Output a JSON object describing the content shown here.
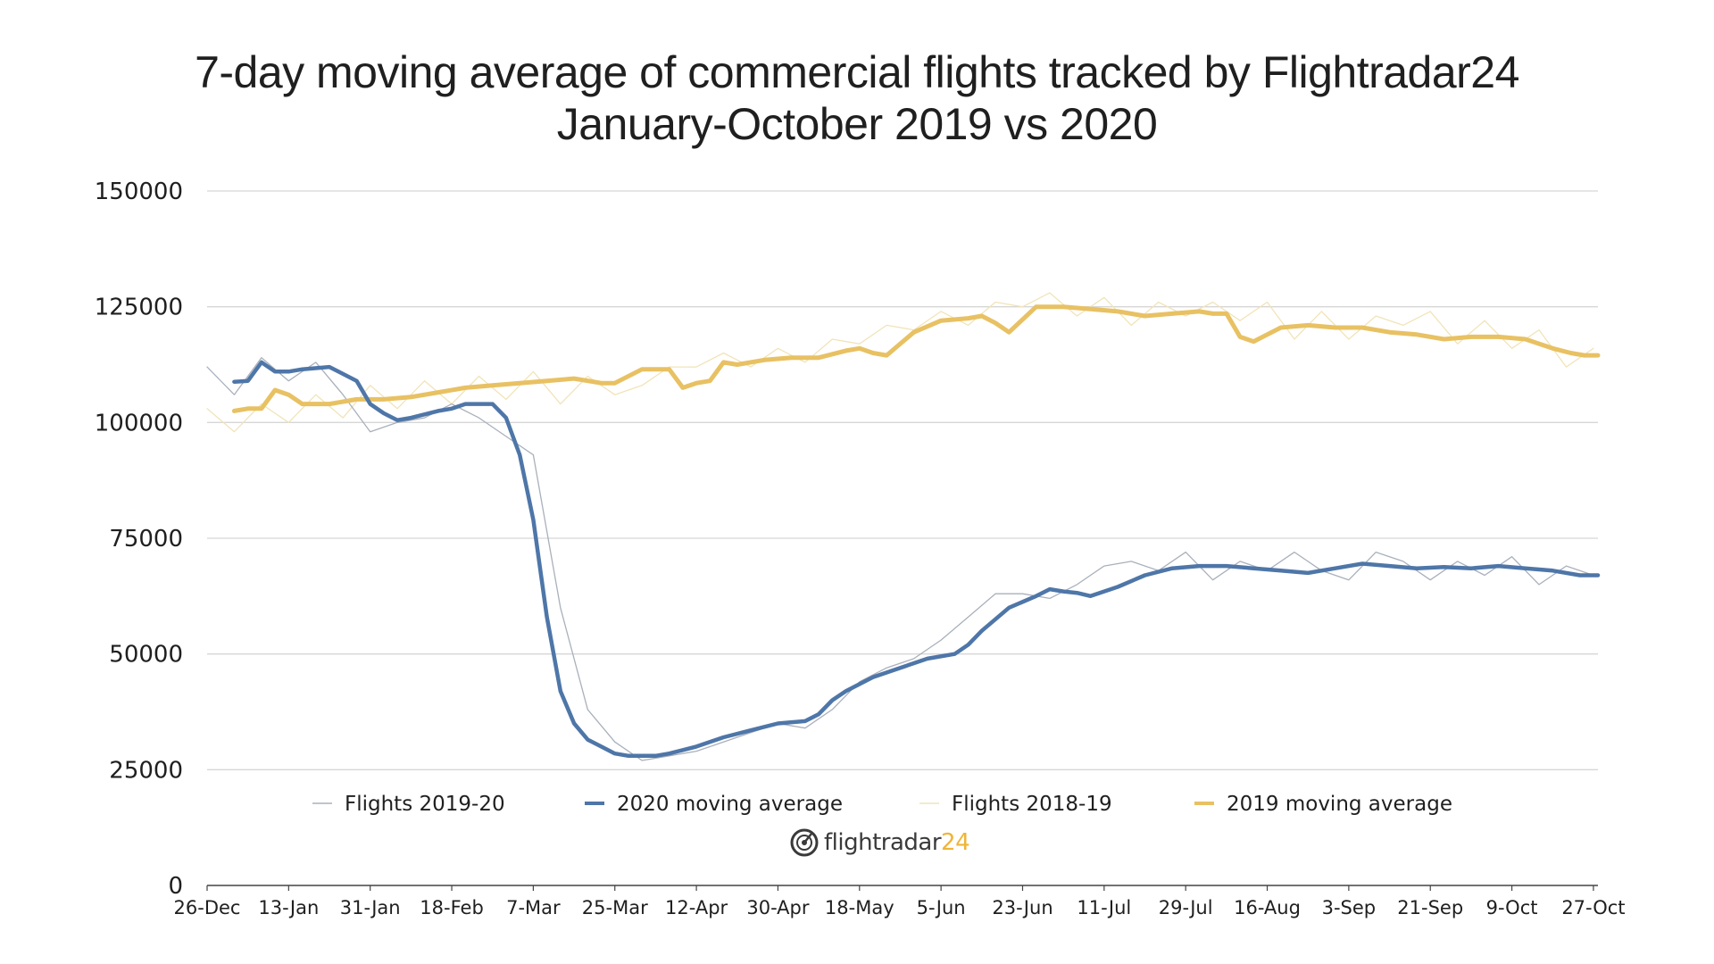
{
  "chart_data": {
    "type": "line",
    "title": "7-day moving average of commercial flights tracked by Flightradar24",
    "subtitle": "January-October 2019 vs 2020",
    "xlabel": "",
    "ylabel": "",
    "ylim": [
      0,
      150000
    ],
    "yticks": [
      "150000",
      "125000",
      "100000",
      "75000",
      "50000",
      "25000",
      "0"
    ],
    "x_tick_labels": [
      "26-Dec",
      "13-Jan",
      "31-Jan",
      "18-Feb",
      "7-Mar",
      "25-Mar",
      "12-Apr",
      "30-Apr",
      "18-May",
      "5-Jun",
      "23-Jun",
      "11-Jul",
      "29-Jul",
      "16-Aug",
      "3-Sep",
      "21-Sep",
      "9-Oct",
      "27-Oct"
    ],
    "grid": true,
    "legend_position": "bottom",
    "series": [
      {
        "name": "Flights 2019-20",
        "color": "#a9b0bb",
        "x_days": [
          0,
          6,
          12,
          18,
          24,
          30,
          36,
          42,
          48,
          54,
          60,
          66,
          72,
          78,
          84,
          90,
          96,
          102,
          108,
          114,
          120,
          126,
          132,
          138,
          144,
          150,
          156,
          162,
          168,
          174,
          180,
          186,
          192,
          198,
          204,
          210,
          216,
          222,
          228,
          234,
          240,
          246,
          252,
          258,
          264,
          270,
          276,
          282,
          288,
          294,
          300,
          306
        ],
        "values": [
          112000,
          106000,
          114000,
          109000,
          113000,
          106000,
          98000,
          100000,
          101000,
          104000,
          101000,
          97000,
          93000,
          60000,
          38000,
          31000,
          27000,
          28000,
          29000,
          31000,
          33000,
          35000,
          34000,
          38000,
          44000,
          47000,
          49000,
          53000,
          58000,
          63000,
          63000,
          62000,
          65000,
          69000,
          70000,
          68000,
          72000,
          66000,
          70000,
          68000,
          72000,
          68000,
          66000,
          72000,
          70000,
          66000,
          70000,
          67000,
          71000,
          65000,
          69000,
          67000
        ]
      },
      {
        "name": "2020 moving average",
        "color": "#4e76a8",
        "x_days": [
          6,
          9,
          12,
          15,
          18,
          21,
          27,
          33,
          36,
          39,
          42,
          45,
          51,
          54,
          57,
          63,
          66,
          69,
          72,
          75,
          78,
          81,
          84,
          87,
          90,
          93,
          96,
          99,
          102,
          108,
          114,
          120,
          126,
          132,
          135,
          138,
          141,
          147,
          153,
          159,
          165,
          168,
          171,
          174,
          177,
          183,
          186,
          189,
          192,
          195,
          201,
          207,
          213,
          219,
          225,
          231,
          237,
          243,
          249,
          255,
          261,
          267,
          273,
          279,
          285,
          291,
          297,
          303,
          307
        ],
        "values": [
          108800,
          109000,
          113000,
          111000,
          111000,
          111500,
          112000,
          109000,
          104000,
          102000,
          100500,
          101000,
          102500,
          103000,
          104000,
          104000,
          101000,
          93000,
          79000,
          58000,
          42000,
          35000,
          31500,
          30000,
          28500,
          28000,
          28000,
          28000,
          28500,
          30000,
          32000,
          33500,
          35000,
          35500,
          37000,
          40000,
          42000,
          45000,
          47000,
          49000,
          50000,
          52000,
          55000,
          57500,
          60000,
          62500,
          64000,
          63500,
          63200,
          62500,
          64500,
          67000,
          68500,
          69000,
          69000,
          68500,
          68000,
          67500,
          68500,
          69500,
          69000,
          68500,
          68800,
          68500,
          69000,
          68500,
          68000,
          67000,
          67000
        ]
      },
      {
        "name": "Flights 2018-19",
        "color": "#f1e4b8",
        "x_days": [
          0,
          6,
          12,
          18,
          24,
          30,
          36,
          42,
          48,
          54,
          60,
          66,
          72,
          78,
          84,
          90,
          96,
          102,
          108,
          114,
          120,
          126,
          132,
          138,
          144,
          150,
          156,
          162,
          168,
          174,
          180,
          186,
          192,
          198,
          204,
          210,
          216,
          222,
          228,
          234,
          240,
          246,
          252,
          258,
          264,
          270,
          276,
          282,
          288,
          294,
          300,
          306
        ],
        "values": [
          103000,
          98000,
          104000,
          100000,
          106000,
          101000,
          108000,
          103000,
          109000,
          104000,
          110000,
          105000,
          111000,
          104000,
          110000,
          106000,
          108000,
          112000,
          112000,
          115000,
          112000,
          116000,
          113000,
          118000,
          117000,
          121000,
          120000,
          124000,
          121000,
          126000,
          125000,
          128000,
          123000,
          127000,
          121000,
          126000,
          123000,
          126000,
          122000,
          126000,
          118000,
          124000,
          118000,
          123000,
          121000,
          124000,
          117000,
          122000,
          116000,
          120000,
          112000,
          116000
        ]
      },
      {
        "name": "2019 moving average",
        "color": "#e8c163",
        "x_days": [
          6,
          9,
          12,
          15,
          18,
          21,
          27,
          33,
          39,
          45,
          51,
          57,
          63,
          69,
          75,
          81,
          87,
          90,
          96,
          102,
          105,
          108,
          111,
          114,
          117,
          123,
          129,
          135,
          141,
          144,
          147,
          150,
          156,
          162,
          168,
          171,
          174,
          177,
          183,
          189,
          195,
          201,
          207,
          213,
          219,
          222,
          225,
          228,
          231,
          237,
          243,
          249,
          255,
          261,
          267,
          273,
          279,
          285,
          291,
          297,
          301,
          304,
          307
        ],
        "values": [
          102500,
          103000,
          103000,
          107000,
          106000,
          104000,
          104000,
          105000,
          105000,
          105500,
          106500,
          107500,
          108000,
          108500,
          109000,
          109500,
          108500,
          108500,
          111500,
          111500,
          107500,
          108500,
          109000,
          113000,
          112500,
          113500,
          114000,
          114000,
          115500,
          116000,
          115000,
          114500,
          119500,
          122000,
          122500,
          123000,
          121500,
          119500,
          125000,
          125000,
          124500,
          124000,
          123000,
          123500,
          124000,
          123500,
          123500,
          118500,
          117500,
          120500,
          121000,
          120500,
          120500,
          119500,
          119000,
          118000,
          118500,
          118500,
          118000,
          116000,
          115000,
          114500,
          114500
        ]
      }
    ]
  },
  "legend": [
    {
      "label": "Flights 2019-20",
      "color": "#a9b0bb"
    },
    {
      "label": "2020 moving average",
      "color": "#4e76a8"
    },
    {
      "label": "Flights 2018-19",
      "color": "#f1e4b8"
    },
    {
      "label": "2019 moving average",
      "color": "#e8c163"
    }
  ],
  "logo": {
    "name": "flightradar24-logo",
    "text_main": "flightradar",
    "text_accent": "24",
    "accent_color": "#f0b437"
  }
}
